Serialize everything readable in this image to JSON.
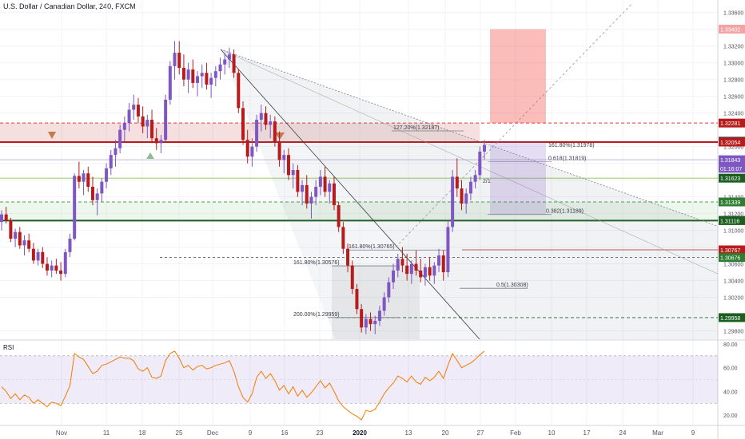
{
  "chart_data": {
    "type": "candlestick",
    "title": "U.S. Dollar / Canadian Dollar, 240, FXCM",
    "price_range": [
      1.297,
      1.3375
    ],
    "x_ticks": [
      "Nov",
      "11",
      "18",
      "25",
      "Dec",
      "9",
      "16",
      "23",
      "2020",
      "13",
      "20",
      "27",
      "Feb",
      "10",
      "17",
      "24",
      "Mar",
      "9"
    ],
    "y_ticks": [
      "1.33600",
      "1.33400",
      "1.33200",
      "1.33000",
      "1.32800",
      "1.32600",
      "1.32400",
      "1.32000",
      "1.31800",
      "1.31600",
      "1.31400",
      "1.31200",
      "1.31000",
      "1.30800",
      "1.30600",
      "1.30400",
      "1.30200",
      "1.29800"
    ],
    "key_prices": [
      {
        "label": "1.33402",
        "price": 1.33402,
        "color": "#f4a3a3"
      },
      {
        "label": "1.32281",
        "price": 1.32281,
        "color": "#b71c1c"
      },
      {
        "label": "1.32064",
        "price": 1.32064,
        "color": "#363a45"
      },
      {
        "label": "1.32054",
        "price": 1.32054,
        "color": "#b71c1c"
      },
      {
        "label": "1.31843",
        "price": 1.31843,
        "color": "#7e57c2"
      },
      {
        "label": "01:16:07",
        "price": 1.3174,
        "color": "#7e57c2"
      },
      {
        "label": "1.31623",
        "price": 1.31623,
        "color": "#1b5e20"
      },
      {
        "label": "1.31339",
        "price": 1.31339,
        "color": "#2e7d32"
      },
      {
        "label": "1.31122",
        "price": 1.31122,
        "color": "#9598a1"
      },
      {
        "label": "1.31116",
        "price": 1.31116,
        "color": "#1b5e20"
      },
      {
        "label": "1.30767",
        "price": 1.30767,
        "color": "#b71c1c"
      },
      {
        "label": "1.30676",
        "price": 1.30676,
        "color": "#2e7d32"
      },
      {
        "label": "1.29958",
        "price": 1.29958,
        "color": "#1b5e20"
      }
    ],
    "annotations": [
      {
        "text": "127.20%(1.32187)",
        "price": 1.32187
      },
      {
        "text": "161.80%(1.31978)",
        "price": 1.31978
      },
      {
        "text": "0.618(1.31819)",
        "price": 1.31819
      },
      {
        "text": "2/1",
        "price": 1.3155
      },
      {
        "text": "0.382(1.31189)",
        "price": 1.31189
      },
      {
        "text": "161.80%(1.30765)",
        "price": 1.30765
      },
      {
        "text": "161.80%(1.30576)",
        "price": 1.30576
      },
      {
        "text": "0.5(1.30308)",
        "price": 1.30308
      },
      {
        "text": "200.00%(1.29959)",
        "price": 1.29959
      }
    ],
    "candles": [
      [
        1.311,
        1.3124,
        1.31,
        1.3119
      ],
      [
        1.3119,
        1.3128,
        1.3108,
        1.3112
      ],
      [
        1.3112,
        1.3115,
        1.3086,
        1.309
      ],
      [
        1.309,
        1.3102,
        1.308,
        1.3098
      ],
      [
        1.3098,
        1.3104,
        1.3078,
        1.3082
      ],
      [
        1.3082,
        1.3094,
        1.307,
        1.3088
      ],
      [
        1.3088,
        1.3096,
        1.3074,
        1.3078
      ],
      [
        1.3078,
        1.3085,
        1.306,
        1.3064
      ],
      [
        1.3064,
        1.3078,
        1.3058,
        1.3074
      ],
      [
        1.3074,
        1.308,
        1.3055,
        1.306
      ],
      [
        1.306,
        1.3068,
        1.3046,
        1.3052
      ],
      [
        1.3052,
        1.3064,
        1.3044,
        1.3058
      ],
      [
        1.3058,
        1.3066,
        1.3048,
        1.3052
      ],
      [
        1.3052,
        1.3062,
        1.304,
        1.3048
      ],
      [
        1.3048,
        1.3078,
        1.3044,
        1.3074
      ],
      [
        1.3074,
        1.3096,
        1.3068,
        1.309
      ],
      [
        1.309,
        1.3168,
        1.3088,
        1.3165
      ],
      [
        1.3165,
        1.3182,
        1.315,
        1.3158
      ],
      [
        1.3158,
        1.3172,
        1.3142,
        1.3168
      ],
      [
        1.3168,
        1.3176,
        1.3146,
        1.3152
      ],
      [
        1.3152,
        1.3164,
        1.313,
        1.3136
      ],
      [
        1.3136,
        1.315,
        1.3118,
        1.3144
      ],
      [
        1.3144,
        1.3162,
        1.3134,
        1.3158
      ],
      [
        1.3158,
        1.318,
        1.315,
        1.3174
      ],
      [
        1.3174,
        1.3196,
        1.3166,
        1.319
      ],
      [
        1.319,
        1.3208,
        1.3176,
        1.3198
      ],
      [
        1.3198,
        1.3226,
        1.3192,
        1.322
      ],
      [
        1.322,
        1.3236,
        1.3206,
        1.3228
      ],
      [
        1.3228,
        1.3252,
        1.3218,
        1.3244
      ],
      [
        1.3244,
        1.3262,
        1.3232,
        1.325
      ],
      [
        1.325,
        1.3258,
        1.3228,
        1.3236
      ],
      [
        1.3236,
        1.3248,
        1.3216,
        1.3224
      ],
      [
        1.3224,
        1.3238,
        1.321,
        1.3232
      ],
      [
        1.3232,
        1.3244,
        1.3204,
        1.321
      ],
      [
        1.321,
        1.3222,
        1.3196,
        1.3204
      ],
      [
        1.3204,
        1.3214,
        1.3192,
        1.3208
      ],
      [
        1.3208,
        1.3262,
        1.3206,
        1.3256
      ],
      [
        1.3256,
        1.3302,
        1.325,
        1.3296
      ],
      [
        1.3296,
        1.3326,
        1.328,
        1.3312
      ],
      [
        1.3312,
        1.3326,
        1.3286,
        1.3294
      ],
      [
        1.3294,
        1.331,
        1.3272,
        1.328
      ],
      [
        1.328,
        1.33,
        1.3264,
        1.3292
      ],
      [
        1.3292,
        1.3304,
        1.327,
        1.3276
      ],
      [
        1.3276,
        1.329,
        1.326,
        1.3284
      ],
      [
        1.3284,
        1.3298,
        1.327,
        1.3288
      ],
      [
        1.3288,
        1.33,
        1.3268,
        1.3274
      ],
      [
        1.3274,
        1.3288,
        1.3258,
        1.3282
      ],
      [
        1.3282,
        1.3296,
        1.3272,
        1.329
      ],
      [
        1.329,
        1.3306,
        1.328,
        1.3298
      ],
      [
        1.3298,
        1.3312,
        1.3286,
        1.3304
      ],
      [
        1.3304,
        1.3318,
        1.3294,
        1.331
      ],
      [
        1.331,
        1.3316,
        1.3282,
        1.3288
      ],
      [
        1.3288,
        1.3292,
        1.324,
        1.3246
      ],
      [
        1.3246,
        1.3254,
        1.3202,
        1.3208
      ],
      [
        1.3208,
        1.322,
        1.318,
        1.3188
      ],
      [
        1.3188,
        1.321,
        1.3176,
        1.32
      ],
      [
        1.32,
        1.3238,
        1.3194,
        1.3232
      ],
      [
        1.3232,
        1.325,
        1.3218,
        1.324
      ],
      [
        1.324,
        1.3248,
        1.322,
        1.3226
      ],
      [
        1.3226,
        1.3238,
        1.321,
        1.323
      ],
      [
        1.323,
        1.3236,
        1.32,
        1.3206
      ],
      [
        1.3206,
        1.3218,
        1.3176,
        1.3184
      ],
      [
        1.3184,
        1.3196,
        1.3168,
        1.319
      ],
      [
        1.319,
        1.3198,
        1.316,
        1.3166
      ],
      [
        1.3166,
        1.318,
        1.315,
        1.3172
      ],
      [
        1.3172,
        1.3178,
        1.314,
        1.3146
      ],
      [
        1.3146,
        1.316,
        1.313,
        1.3154
      ],
      [
        1.3154,
        1.3166,
        1.3126,
        1.3132
      ],
      [
        1.3132,
        1.3146,
        1.3114,
        1.314
      ],
      [
        1.314,
        1.316,
        1.313,
        1.3152
      ],
      [
        1.3152,
        1.3172,
        1.3142,
        1.3164
      ],
      [
        1.3164,
        1.3176,
        1.314,
        1.3146
      ],
      [
        1.3146,
        1.316,
        1.3132,
        1.3156
      ],
      [
        1.3156,
        1.3164,
        1.3124,
        1.313
      ],
      [
        1.313,
        1.3134,
        1.3098,
        1.3104
      ],
      [
        1.3104,
        1.311,
        1.3072,
        1.3078
      ],
      [
        1.3078,
        1.3084,
        1.305,
        1.3058
      ],
      [
        1.3058,
        1.3064,
        1.3024,
        1.303
      ],
      [
        1.303,
        1.3036,
        1.3,
        1.3006
      ],
      [
        1.3006,
        1.3012,
        1.2978,
        1.2984
      ],
      [
        1.2984,
        1.3,
        1.2976,
        1.2994
      ],
      [
        1.2994,
        1.3002,
        1.298,
        1.2988
      ],
      [
        1.2988,
        1.2998,
        1.2976,
        1.2992
      ],
      [
        1.2992,
        1.301,
        1.2986,
        1.3004
      ],
      [
        1.3004,
        1.3026,
        1.2998,
        1.302
      ],
      [
        1.302,
        1.3044,
        1.3014,
        1.3038
      ],
      [
        1.3038,
        1.306,
        1.303,
        1.3052
      ],
      [
        1.3052,
        1.3072,
        1.3044,
        1.3066
      ],
      [
        1.3066,
        1.308,
        1.305,
        1.3058
      ],
      [
        1.3058,
        1.3072,
        1.304,
        1.3048
      ],
      [
        1.3048,
        1.3064,
        1.3036,
        1.306
      ],
      [
        1.306,
        1.3076,
        1.3046,
        1.3052
      ],
      [
        1.3052,
        1.3066,
        1.3038,
        1.3044
      ],
      [
        1.3044,
        1.306,
        1.3034,
        1.3056
      ],
      [
        1.3056,
        1.3068,
        1.304,
        1.3046
      ],
      [
        1.3046,
        1.3062,
        1.3036,
        1.3058
      ],
      [
        1.3058,
        1.3078,
        1.305,
        1.307
      ],
      [
        1.307,
        1.3076,
        1.304,
        1.305
      ],
      [
        1.305,
        1.3112,
        1.3044,
        1.3104
      ],
      [
        1.3104,
        1.3172,
        1.3098,
        1.3164
      ],
      [
        1.3164,
        1.3186,
        1.314,
        1.315
      ],
      [
        1.315,
        1.316,
        1.3124,
        1.3132
      ],
      [
        1.3132,
        1.315,
        1.312,
        1.3144
      ],
      [
        1.3144,
        1.3164,
        1.3136,
        1.3158
      ],
      [
        1.3158,
        1.3172,
        1.315,
        1.3166
      ],
      [
        1.3166,
        1.32,
        1.316,
        1.3194
      ],
      [
        1.3194,
        1.3208,
        1.3184,
        1.3202
      ]
    ],
    "rsi": {
      "title": "RSI",
      "y_ticks": [
        "80.00",
        "60.00",
        "40.00",
        "20.00"
      ],
      "range": [
        12,
        82
      ],
      "band": [
        30,
        70
      ],
      "values": [
        44,
        40,
        34,
        38,
        33,
        37,
        35,
        30,
        33,
        30,
        27,
        31,
        30,
        28,
        36,
        45,
        72,
        69,
        67,
        61,
        55,
        57,
        62,
        63,
        65,
        67,
        69,
        68,
        68,
        66,
        59,
        57,
        60,
        52,
        51,
        53,
        66,
        72,
        74,
        68,
        60,
        62,
        58,
        61,
        62,
        59,
        60,
        62,
        63,
        64,
        66,
        57,
        44,
        35,
        31,
        38,
        52,
        57,
        51,
        55,
        49,
        41,
        45,
        38,
        44,
        36,
        41,
        35,
        39,
        44,
        49,
        43,
        47,
        40,
        32,
        27,
        24,
        21,
        19,
        16,
        24,
        23,
        25,
        31,
        38,
        43,
        47,
        53,
        51,
        48,
        53,
        48,
        46,
        52,
        49,
        52,
        57,
        51,
        62,
        72,
        66,
        60,
        62,
        64,
        67,
        71,
        74
      ]
    }
  }
}
